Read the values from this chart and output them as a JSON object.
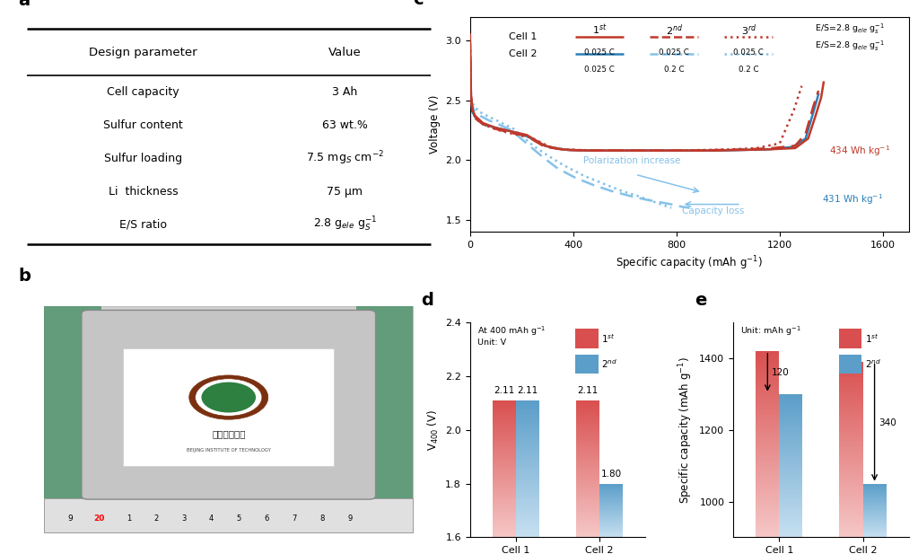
{
  "title_a": "a",
  "title_b": "b",
  "title_c": "c",
  "title_d": "d",
  "title_e": "e",
  "table_headers": [
    "Design parameter",
    "Value"
  ],
  "table_rows": [
    [
      "Cell capacity",
      "3 Ah"
    ],
    [
      "Sulfur content",
      "63 wt.%"
    ],
    [
      "Sulfur loading",
      "7.5 mg$_S$ cm$^{-2}$"
    ],
    [
      "Li  thickness",
      "75 μm"
    ],
    [
      "E/S ratio",
      "2.8 g$_{ele}$ g$_S^{-1}$"
    ]
  ],
  "panel_c_xlabel": "Specific capacity (mAh g$^{-1}$)",
  "panel_c_ylabel": "Voltage (V)",
  "panel_c_xlim": [
    0,
    1700
  ],
  "panel_c_ylim": [
    1.4,
    3.2
  ],
  "panel_c_xticks": [
    0,
    400,
    800,
    1200,
    1600
  ],
  "panel_c_yticks": [
    1.5,
    2.0,
    2.5,
    3.0
  ],
  "panel_d_ylabel": "V$_{400}$ (V)",
  "panel_d_ylim": [
    1.6,
    2.4
  ],
  "panel_d_yticks": [
    1.6,
    1.8,
    2.0,
    2.2,
    2.4
  ],
  "panel_d_categories": [
    "Cell 1",
    "Cell 2"
  ],
  "panel_d_bar1_vals": [
    2.11,
    2.11
  ],
  "panel_d_bar2_vals": [
    2.11,
    1.8
  ],
  "panel_d_bar1_color_top": "#d94f4f",
  "panel_d_bar1_color_bottom": "#f5c6c6",
  "panel_d_bar2_color_top": "#5b9ec9",
  "panel_d_bar2_color_bottom": "#c6dff0",
  "panel_e_ylabel": "Specific capacity (mAh g$^{-1}$)",
  "panel_e_ylim": [
    900,
    1500
  ],
  "panel_e_yticks": [
    1000,
    1200,
    1400
  ],
  "panel_e_categories": [
    "Cell 1",
    "Cell 2"
  ],
  "panel_e_bar1_vals": [
    1420,
    1390
  ],
  "panel_e_bar2_vals": [
    1300,
    1050
  ],
  "panel_e_bar1_color_top": "#d94f4f",
  "panel_e_bar1_color_bottom": "#f5c6c6",
  "panel_e_bar2_color_top": "#5b9ec9",
  "panel_e_bar2_color_bottom": "#c6dff0",
  "color_red": "#c0392b",
  "color_blue": "#2980b9",
  "color_lightblue": "#85c1e9"
}
